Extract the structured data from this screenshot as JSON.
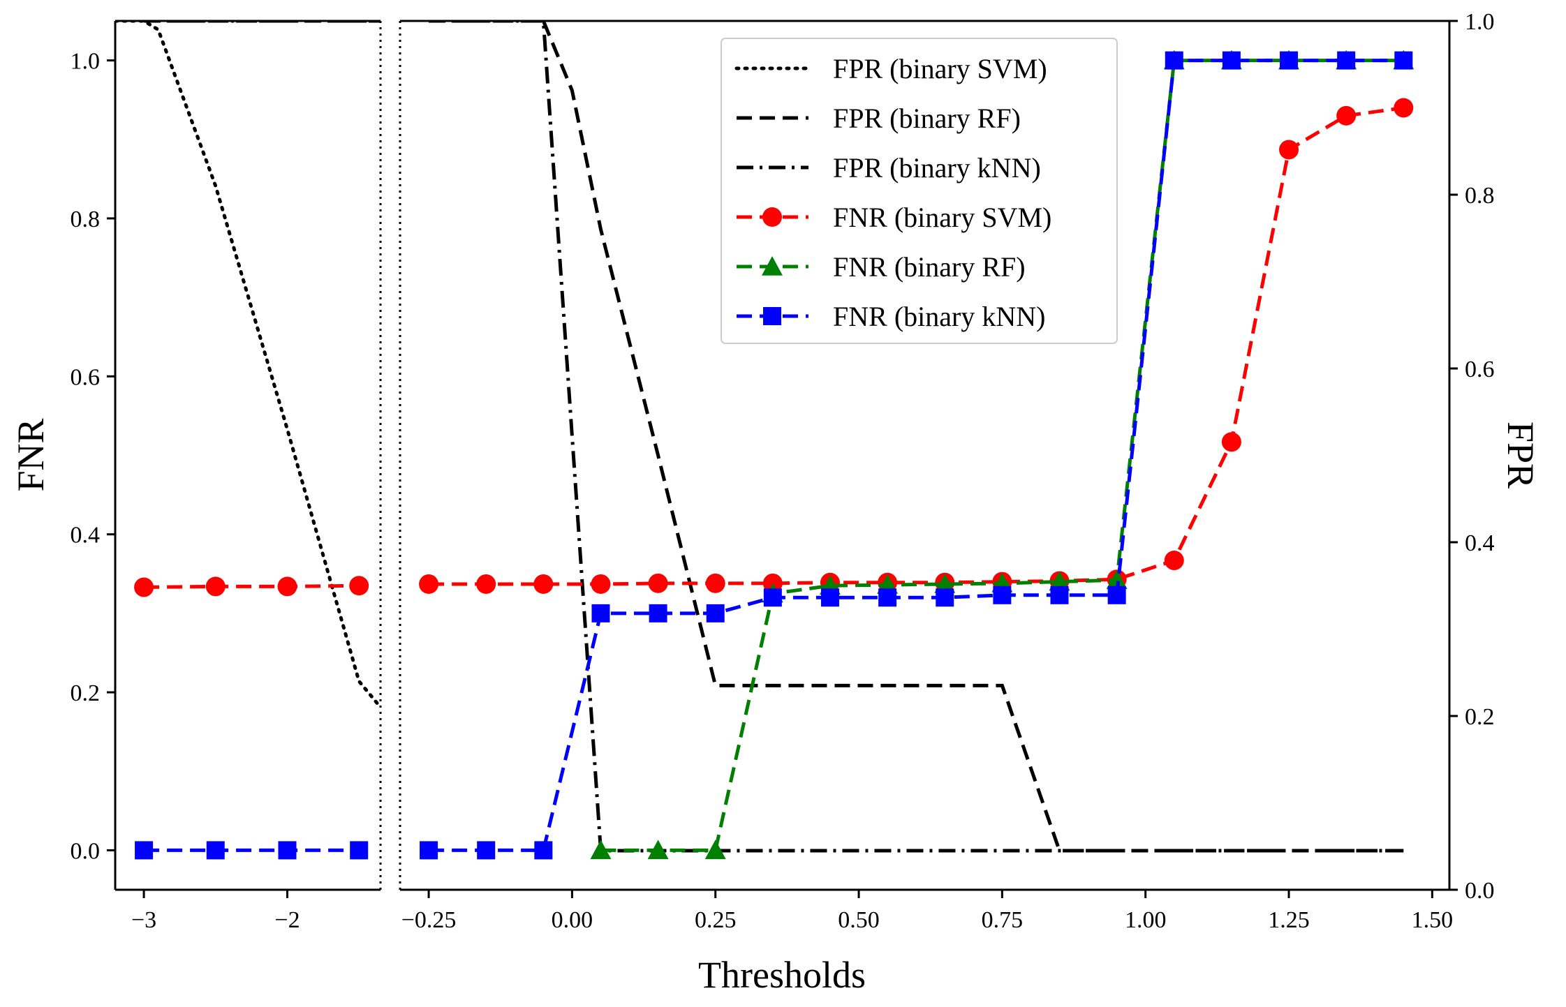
{
  "chart_data": {
    "type": "line",
    "xlabel": "Thresholds",
    "ylabel": "FNR",
    "ylabel_right": "FPR",
    "left_axis": {
      "ylim": [
        -0.05,
        1.05
      ],
      "ticks": [
        0.0,
        0.2,
        0.4,
        0.6,
        0.8,
        1.0
      ],
      "tick_labels": [
        "0.0",
        "0.2",
        "0.4",
        "0.6",
        "0.8",
        "1.0"
      ]
    },
    "right_axis": {
      "ylim": [
        0.0,
        1.0
      ],
      "ticks": [
        0.0,
        0.2,
        0.4,
        0.6,
        0.8,
        1.0
      ],
      "tick_labels": [
        "0.0",
        "0.2",
        "0.4",
        "0.6",
        "0.8",
        "1.0"
      ]
    },
    "broken_x_axis": true,
    "grid": false,
    "legend_position": "top-right",
    "panels": [
      {
        "xlim": [
          -3.2,
          -1.35
        ],
        "ticks": [
          -3,
          -2
        ],
        "tick_labels": [
          "−3",
          "−2"
        ]
      },
      {
        "xlim": [
          -0.3,
          1.53
        ],
        "ticks": [
          -0.25,
          0.0,
          0.25,
          0.5,
          0.75,
          1.0,
          1.25,
          1.5
        ],
        "tick_labels": [
          "−0.25",
          "0.00",
          "0.25",
          "0.50",
          "0.75",
          "1.00",
          "1.25",
          "1.50"
        ]
      }
    ],
    "series": [
      {
        "name": "FPR (binary SVM)",
        "axis": "right",
        "color": "#000000",
        "dash": "dotted",
        "marker": "none",
        "x": [
          -3.2,
          -3.0,
          -2.9,
          -2.5,
          -2.0,
          -1.5,
          -1.35
        ],
        "y": [
          1.0,
          1.0,
          0.99,
          0.81,
          0.53,
          0.24,
          0.21
        ]
      },
      {
        "name": "FPR (binary RF)",
        "axis": "right",
        "color": "#000000",
        "dash": "dashed",
        "marker": "none",
        "x": [
          -3.0,
          -2.5,
          -2.0,
          -1.5,
          -1.35,
          -0.25,
          -0.15,
          -0.05,
          0.0,
          0.05,
          0.15,
          0.25,
          0.35,
          0.45,
          0.55,
          0.65,
          0.75,
          0.85,
          0.95,
          1.05,
          1.15,
          1.25,
          1.35,
          1.45
        ],
        "y": [
          1.0,
          1.0,
          1.0,
          1.0,
          1.0,
          1.0,
          1.0,
          1.0,
          0.92,
          0.76,
          0.5,
          0.235,
          0.235,
          0.235,
          0.235,
          0.235,
          0.235,
          0.045,
          0.045,
          0.045,
          0.045,
          0.045,
          0.045,
          0.045
        ]
      },
      {
        "name": "FPR (binary kNN)",
        "axis": "right",
        "color": "#000000",
        "dash": "dashdot",
        "marker": "none",
        "x": [
          -3.0,
          -2.5,
          -2.0,
          -1.5,
          -1.35,
          -0.25,
          -0.15,
          -0.05,
          0.05,
          0.15,
          0.25,
          0.35,
          0.45,
          0.55,
          0.65,
          0.75,
          0.85,
          0.95,
          1.05,
          1.15,
          1.25,
          1.35,
          1.45
        ],
        "y": [
          1.0,
          1.0,
          1.0,
          1.0,
          1.0,
          1.0,
          1.0,
          1.0,
          0.045,
          0.045,
          0.045,
          0.045,
          0.045,
          0.045,
          0.045,
          0.045,
          0.045,
          0.045,
          0.045,
          0.045,
          0.045,
          0.045,
          0.045
        ]
      },
      {
        "name": "FNR (binary SVM)",
        "axis": "left",
        "color": "#ff0000",
        "dash": "dashed",
        "marker": "circle",
        "x": [
          -3.0,
          -2.5,
          -2.0,
          -1.5,
          -0.25,
          -0.15,
          -0.05,
          0.05,
          0.15,
          0.25,
          0.35,
          0.45,
          0.55,
          0.65,
          0.75,
          0.85,
          0.95,
          1.05,
          1.15,
          1.25,
          1.35,
          1.45
        ],
        "y": [
          0.333,
          0.334,
          0.334,
          0.335,
          0.337,
          0.337,
          0.337,
          0.337,
          0.338,
          0.338,
          0.338,
          0.339,
          0.339,
          0.339,
          0.34,
          0.341,
          0.343,
          0.367,
          0.517,
          0.887,
          0.93,
          0.94
        ]
      },
      {
        "name": "FNR (binary RF)",
        "axis": "left",
        "color": "#008000",
        "dash": "dashed",
        "marker": "triangle",
        "x": [
          0.05,
          0.15,
          0.25,
          0.35,
          0.45,
          0.55,
          0.65,
          0.75,
          0.85,
          0.95,
          1.05,
          1.15,
          1.25,
          1.35,
          1.45
        ],
        "y": [
          0.0,
          0.0,
          0.0,
          0.325,
          0.335,
          0.336,
          0.337,
          0.338,
          0.34,
          0.342,
          1.0,
          1.0,
          1.0,
          1.0,
          1.0
        ]
      },
      {
        "name": "FNR (binary kNN)",
        "axis": "left",
        "color": "#0000ff",
        "dash": "dashed",
        "marker": "square",
        "x": [
          -3.0,
          -2.5,
          -2.0,
          -1.5,
          -0.25,
          -0.15,
          -0.05,
          0.05,
          0.15,
          0.25,
          0.35,
          0.45,
          0.55,
          0.65,
          0.75,
          0.85,
          0.95,
          1.05,
          1.15,
          1.25,
          1.35,
          1.45
        ],
        "y": [
          0.0,
          0.0,
          0.0,
          0.0,
          0.0,
          0.0,
          0.0,
          0.3,
          0.3,
          0.3,
          0.32,
          0.32,
          0.32,
          0.32,
          0.323,
          0.323,
          0.323,
          1.0,
          1.0,
          1.0,
          1.0,
          1.0
        ]
      }
    ]
  }
}
